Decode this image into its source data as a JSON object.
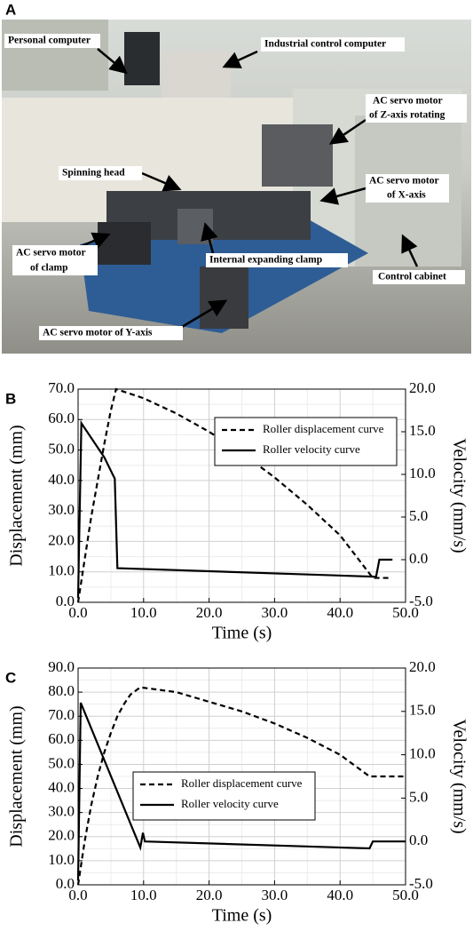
{
  "photo": {
    "panel_label": "A",
    "annotations": [
      {
        "lines": [
          "Personal computer"
        ]
      },
      {
        "lines": [
          "Industrial control computer"
        ]
      },
      {
        "lines": [
          "AC servo motor",
          "of Z-axis rotating"
        ]
      },
      {
        "lines": [
          "Spinning head"
        ]
      },
      {
        "lines": [
          "AC servo motor",
          "of X-axis"
        ]
      },
      {
        "lines": [
          "Internal expanding clamp"
        ]
      },
      {
        "lines": [
          "AC servo motor",
          "of clamp"
        ]
      },
      {
        "lines": [
          "Control cabinet"
        ]
      },
      {
        "lines": [
          "AC servo motor of Y-axis"
        ]
      }
    ]
  },
  "chart_data": [
    {
      "type": "line",
      "panel_label": "B",
      "xlabel": "Time (s)",
      "ylabel": "Displacement (mm)",
      "y2label": "Velocity (mm/s)",
      "grid": true,
      "legend": "upper right",
      "xlim": [
        0,
        50
      ],
      "xticks": [
        {
          "value": 0,
          "label": "0.0"
        },
        {
          "value": 10,
          "label": "10.0"
        },
        {
          "value": 20,
          "label": "20.0"
        },
        {
          "value": 30,
          "label": "30.0"
        },
        {
          "value": 40,
          "label": "40.0"
        },
        {
          "value": 50,
          "label": "50.0"
        }
      ],
      "ylim": [
        0,
        70
      ],
      "yticks": [
        {
          "value": 0,
          "label": "0.0"
        },
        {
          "value": 10,
          "label": "10.0"
        },
        {
          "value": 20,
          "label": "20.0"
        },
        {
          "value": 30,
          "label": "30.0"
        },
        {
          "value": 40,
          "label": "40.0"
        },
        {
          "value": 50,
          "label": "50.0"
        },
        {
          "value": 60,
          "label": "60.0"
        },
        {
          "value": 70,
          "label": "70.0"
        }
      ],
      "y2lim": [
        -5,
        20
      ],
      "y2ticks": [
        {
          "value": -5,
          "label": "-5.0"
        },
        {
          "value": 0,
          "label": "0.0"
        },
        {
          "value": 5,
          "label": "5.0"
        },
        {
          "value": 10,
          "label": "10.0"
        },
        {
          "value": 15,
          "label": "15.0"
        },
        {
          "value": 20,
          "label": "20.0"
        }
      ],
      "series": [
        {
          "name": "Roller displacement curve",
          "color": "#000000",
          "linestyle": "dashed",
          "axis": "y",
          "x": [
            0,
            1,
            2,
            3,
            4,
            5,
            5.8,
            10,
            15,
            20,
            25,
            30,
            35,
            40,
            45,
            47.5
          ],
          "values": [
            0,
            14,
            28,
            40,
            52,
            63,
            70,
            67,
            62,
            56,
            49,
            41,
            32,
            22,
            8,
            8
          ]
        },
        {
          "name": "Roller velocity curve",
          "color": "#000000",
          "linestyle": "solid",
          "axis": "y2",
          "x": [
            0,
            0.5,
            4,
            5.6,
            6,
            45.5,
            46,
            48
          ],
          "values": [
            -4.5,
            16,
            12,
            9.5,
            -1,
            -2,
            0,
            0
          ]
        }
      ]
    },
    {
      "type": "line",
      "panel_label": "C",
      "xlabel": "Time (s)",
      "ylabel": "Displacement (mm)",
      "y2label": "Velocity (mm/s)",
      "grid": true,
      "legend": "center left",
      "xlim": [
        0,
        50
      ],
      "xticks": [
        {
          "value": 0,
          "label": "0.0"
        },
        {
          "value": 10,
          "label": "10.0"
        },
        {
          "value": 20,
          "label": "20.0"
        },
        {
          "value": 30,
          "label": "30.0"
        },
        {
          "value": 40,
          "label": "40.0"
        },
        {
          "value": 50,
          "label": "50.0"
        }
      ],
      "ylim": [
        0,
        90
      ],
      "yticks": [
        {
          "value": 0,
          "label": "0.0"
        },
        {
          "value": 10,
          "label": "10.0"
        },
        {
          "value": 20,
          "label": "20.0"
        },
        {
          "value": 30,
          "label": "30.0"
        },
        {
          "value": 40,
          "label": "40.0"
        },
        {
          "value": 50,
          "label": "50.0"
        },
        {
          "value": 60,
          "label": "60.0"
        },
        {
          "value": 70,
          "label": "70.0"
        },
        {
          "value": 80,
          "label": "80.0"
        },
        {
          "value": 90,
          "label": "90.0"
        }
      ],
      "y2lim": [
        -5,
        20
      ],
      "y2ticks": [
        {
          "value": -5,
          "label": "-5.0"
        },
        {
          "value": 0,
          "label": "0.0"
        },
        {
          "value": 5,
          "label": "5.0"
        },
        {
          "value": 10,
          "label": "10.0"
        },
        {
          "value": 15,
          "label": "15.0"
        },
        {
          "value": 20,
          "label": "20.0"
        }
      ],
      "series": [
        {
          "name": "Roller displacement curve",
          "color": "#000000",
          "linestyle": "dashed",
          "axis": "y",
          "x": [
            0,
            1,
            2,
            3,
            4,
            5,
            6,
            7,
            8,
            9,
            9.5,
            15,
            20,
            25,
            30,
            35,
            40,
            44.5,
            50
          ],
          "values": [
            0,
            18,
            33,
            45,
            55,
            63,
            70,
            75,
            79,
            81,
            82,
            80,
            76,
            72,
            67,
            61,
            54,
            45,
            45
          ]
        },
        {
          "name": "Roller velocity curve",
          "color": "#000000",
          "linestyle": "solid",
          "axis": "y2",
          "x": [
            0,
            0.4,
            9.5,
            9.9,
            10.2,
            44.5,
            45,
            50
          ],
          "values": [
            -4.5,
            16,
            -0.7,
            1,
            0,
            -0.8,
            0,
            0
          ]
        }
      ]
    }
  ]
}
